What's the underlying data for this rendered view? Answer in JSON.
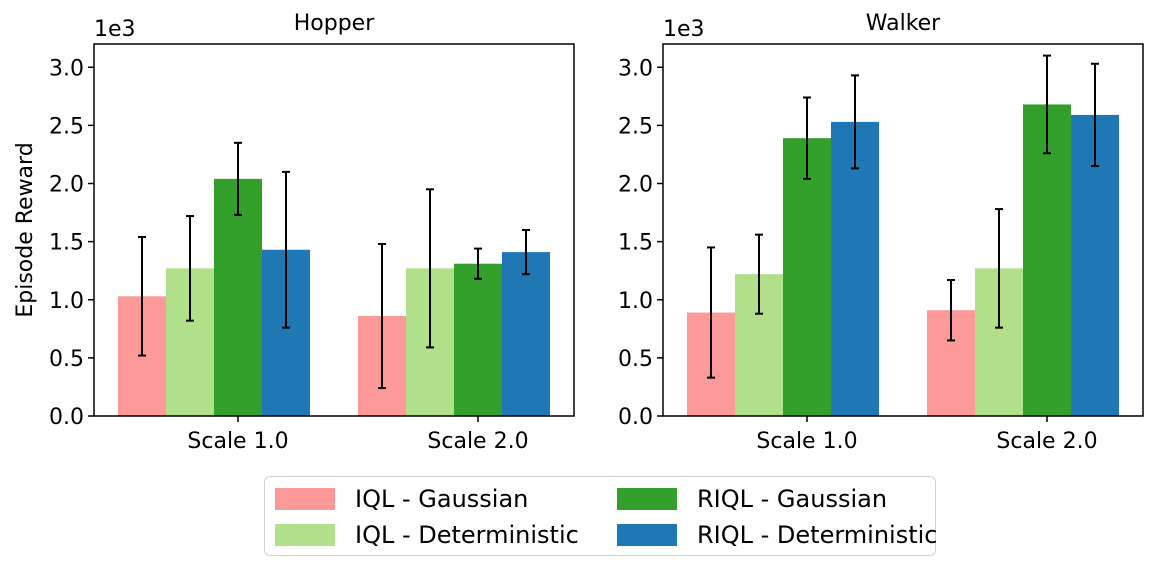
{
  "chart_data": [
    {
      "type": "bar",
      "title": "Hopper",
      "scale_label": "1e3",
      "ylabel": "Episode Reward",
      "xlabel": "",
      "categories": [
        "Scale 1.0",
        "Scale 2.0"
      ],
      "ylim": [
        0,
        3.2
      ],
      "yticks": [
        "0.0",
        "0.5",
        "1.0",
        "1.5",
        "2.0",
        "2.5",
        "3.0"
      ],
      "series": [
        {
          "name": "IQL - Gaussian",
          "values": [
            1.03,
            0.86
          ],
          "errors": [
            0.51,
            0.62
          ]
        },
        {
          "name": "IQL - Deterministic",
          "values": [
            1.27,
            1.27
          ],
          "errors": [
            0.45,
            0.68
          ]
        },
        {
          "name": "RIQL - Gaussian",
          "values": [
            2.04,
            1.31
          ],
          "errors": [
            0.31,
            0.13
          ]
        },
        {
          "name": "RIQL - Deterministic",
          "values": [
            1.43,
            1.41
          ],
          "errors": [
            0.67,
            0.19
          ]
        }
      ]
    },
    {
      "type": "bar",
      "title": "Walker",
      "scale_label": "1e3",
      "ylabel": "",
      "xlabel": "",
      "categories": [
        "Scale 1.0",
        "Scale 2.0"
      ],
      "ylim": [
        0,
        3.2
      ],
      "yticks": [
        "0.0",
        "0.5",
        "1.0",
        "1.5",
        "2.0",
        "2.5",
        "3.0"
      ],
      "series": [
        {
          "name": "IQL - Gaussian",
          "values": [
            0.89,
            0.91
          ],
          "errors": [
            0.56,
            0.26
          ]
        },
        {
          "name": "IQL - Deterministic",
          "values": [
            1.22,
            1.27
          ],
          "errors": [
            0.34,
            0.51
          ]
        },
        {
          "name": "RIQL - Gaussian",
          "values": [
            2.39,
            2.68
          ],
          "errors": [
            0.35,
            0.42
          ]
        },
        {
          "name": "RIQL - Deterministic",
          "values": [
            2.53,
            2.59
          ],
          "errors": [
            0.4,
            0.44
          ]
        }
      ]
    }
  ],
  "legend": {
    "placement": "bottom-center",
    "items": [
      {
        "label": "IQL - Gaussian",
        "color": "#fb9a99"
      },
      {
        "label": "IQL - Deterministic",
        "color": "#b2df8a"
      },
      {
        "label": "RIQL - Gaussian",
        "color": "#33a02c"
      },
      {
        "label": "RIQL - Deterministic",
        "color": "#1f78b4"
      }
    ]
  }
}
